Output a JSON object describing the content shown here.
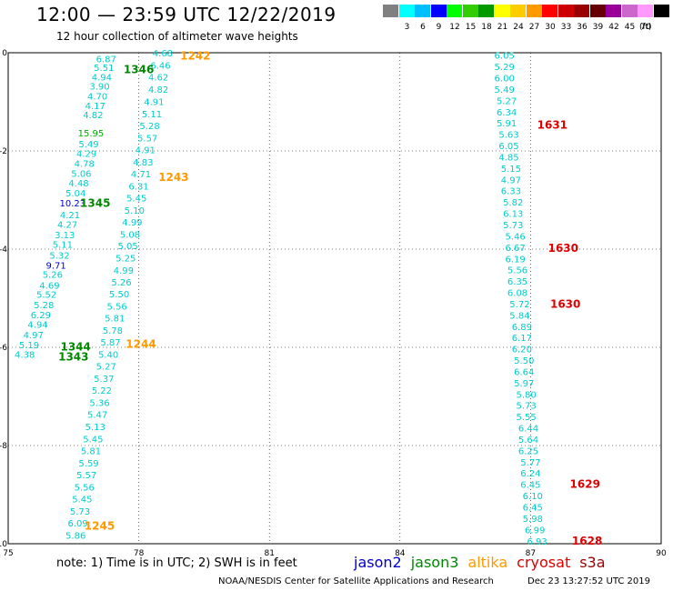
{
  "header": {
    "title": "12:00 — 23:59 UTC 12/22/2019",
    "subtitle": "12 hour collection of altimeter wave heights"
  },
  "color_scale": {
    "unit": "(ft)",
    "bins": [
      {
        "label": "",
        "color": "#808080"
      },
      {
        "label": "3",
        "color": "#00ffff"
      },
      {
        "label": "6",
        "color": "#00bfff"
      },
      {
        "label": "9",
        "color": "#0000ff"
      },
      {
        "label": "12",
        "color": "#00ff00"
      },
      {
        "label": "15",
        "color": "#33cc00"
      },
      {
        "label": "18",
        "color": "#009900"
      },
      {
        "label": "21",
        "color": "#ffff00"
      },
      {
        "label": "24",
        "color": "#ffcc00"
      },
      {
        "label": "27",
        "color": "#ff9900"
      },
      {
        "label": "30",
        "color": "#ff0000"
      },
      {
        "label": "33",
        "color": "#cc0000"
      },
      {
        "label": "36",
        "color": "#990000"
      },
      {
        "label": "39",
        "color": "#660000"
      },
      {
        "label": "42",
        "color": "#990099"
      },
      {
        "label": "45",
        "color": "#cc66cc"
      },
      {
        "label": "70",
        "color": "#ff99ff"
      },
      {
        "label": "",
        "color": "#000000"
      }
    ]
  },
  "chart_data": {
    "type": "scatter",
    "lon_ticks": [
      "75",
      "78",
      "81",
      "84",
      "87",
      "90"
    ],
    "lat_ticks": [
      "0",
      "-2",
      "-4",
      "-6",
      "-8",
      "-10"
    ],
    "lon_range": [
      75,
      90
    ],
    "lat_range": [
      -10,
      0
    ],
    "colors": {
      "swh": "#00cccc",
      "swh_blue": "#0000cc",
      "swh_green": "#00aa00",
      "jason2": "#0000cc",
      "jason3": "#008800",
      "altika": "#ff9900",
      "cryosat": "#dd0000",
      "s3a": "#990000"
    },
    "tracks": [
      {
        "name": "track-a",
        "points": [
          {
            "lon": 77.25,
            "lat": -0.12,
            "v": "6.87"
          },
          {
            "lon": 77.2,
            "lat": -0.3,
            "v": "5.51"
          },
          {
            "lon": 77.15,
            "lat": -0.49,
            "v": "4.94"
          },
          {
            "lon": 77.1,
            "lat": -0.68,
            "v": "3.90"
          },
          {
            "lon": 77.05,
            "lat": -0.88,
            "v": "4.70"
          },
          {
            "lon": 77.0,
            "lat": -1.07,
            "v": "4.17"
          },
          {
            "lon": 76.95,
            "lat": -1.26,
            "v": "4.82"
          },
          {
            "lon": 76.9,
            "lat": -1.63,
            "v": "15.95",
            "c": "green"
          },
          {
            "lon": 76.85,
            "lat": -1.85,
            "v": "5.49"
          },
          {
            "lon": 76.8,
            "lat": -2.05,
            "v": "4.29"
          },
          {
            "lon": 76.75,
            "lat": -2.25,
            "v": "4.78"
          },
          {
            "lon": 76.68,
            "lat": -2.45,
            "v": "5.06"
          },
          {
            "lon": 76.62,
            "lat": -2.65,
            "v": "4.48"
          },
          {
            "lon": 76.55,
            "lat": -2.85,
            "v": "5.04"
          },
          {
            "lon": 76.48,
            "lat": -3.06,
            "v": "10.23",
            "c": "blue"
          },
          {
            "lon": 76.42,
            "lat": -3.3,
            "v": "4.21"
          },
          {
            "lon": 76.36,
            "lat": -3.49,
            "v": "4.27"
          },
          {
            "lon": 76.3,
            "lat": -3.7,
            "v": "3.13"
          },
          {
            "lon": 76.25,
            "lat": -3.9,
            "v": "5.11"
          },
          {
            "lon": 76.18,
            "lat": -4.12,
            "v": "5.32"
          },
          {
            "lon": 76.1,
            "lat": -4.32,
            "v": "9.71",
            "c": "blue"
          },
          {
            "lon": 76.02,
            "lat": -4.51,
            "v": "5.26"
          },
          {
            "lon": 75.95,
            "lat": -4.73,
            "v": "4.69"
          },
          {
            "lon": 75.88,
            "lat": -4.92,
            "v": "5.52"
          },
          {
            "lon": 75.82,
            "lat": -5.13,
            "v": "5.28"
          },
          {
            "lon": 75.75,
            "lat": -5.33,
            "v": "6.29"
          },
          {
            "lon": 75.68,
            "lat": -5.53,
            "v": "4.94"
          },
          {
            "lon": 75.58,
            "lat": -5.74,
            "v": "4.97"
          },
          {
            "lon": 75.48,
            "lat": -5.94,
            "v": "5.19"
          },
          {
            "lon": 75.38,
            "lat": -6.14,
            "v": "4.38"
          }
        ],
        "labels": [
          {
            "lon": 77.0,
            "lat": -3.05,
            "t": "1345",
            "c": "jason3"
          },
          {
            "lon": 76.55,
            "lat": -5.97,
            "t": "1344",
            "c": "jason3"
          },
          {
            "lon": 76.5,
            "lat": -6.18,
            "t": "1343",
            "c": "jason3"
          }
        ]
      },
      {
        "name": "track-b",
        "points": [
          {
            "lon": 78.55,
            "lat": 0.0,
            "v": "4.68"
          },
          {
            "lon": 78.5,
            "lat": -0.25,
            "v": "6.46"
          },
          {
            "lon": 78.45,
            "lat": -0.49,
            "v": "4.62"
          },
          {
            "lon": 78.45,
            "lat": -0.74,
            "v": "4.82"
          },
          {
            "lon": 78.35,
            "lat": -0.99,
            "v": "4.91"
          },
          {
            "lon": 78.3,
            "lat": -1.24,
            "v": "5.11"
          },
          {
            "lon": 78.25,
            "lat": -1.48,
            "v": "5.28"
          },
          {
            "lon": 78.2,
            "lat": -1.73,
            "v": "5.57"
          },
          {
            "lon": 78.15,
            "lat": -1.97,
            "v": "4.91"
          },
          {
            "lon": 78.1,
            "lat": -2.22,
            "v": "4.83"
          },
          {
            "lon": 78.05,
            "lat": -2.46,
            "v": "4.71"
          },
          {
            "lon": 78.0,
            "lat": -2.71,
            "v": "6.31"
          },
          {
            "lon": 77.95,
            "lat": -2.95,
            "v": "5.45"
          },
          {
            "lon": 77.9,
            "lat": -3.2,
            "v": "5.10"
          },
          {
            "lon": 77.85,
            "lat": -3.44,
            "v": "4.99"
          },
          {
            "lon": 77.8,
            "lat": -3.69,
            "v": "5.08"
          },
          {
            "lon": 77.75,
            "lat": -3.93,
            "v": "5.05"
          },
          {
            "lon": 77.7,
            "lat": -4.18,
            "v": "5.25"
          },
          {
            "lon": 77.65,
            "lat": -4.43,
            "v": "4.99"
          },
          {
            "lon": 77.6,
            "lat": -4.67,
            "v": "5.26"
          },
          {
            "lon": 77.55,
            "lat": -4.91,
            "v": "5.50"
          },
          {
            "lon": 77.5,
            "lat": -5.16,
            "v": "5.56"
          },
          {
            "lon": 77.45,
            "lat": -5.4,
            "v": "5.81"
          },
          {
            "lon": 77.4,
            "lat": -5.65,
            "v": "5.78"
          },
          {
            "lon": 77.35,
            "lat": -5.89,
            "v": "5.87"
          },
          {
            "lon": 77.3,
            "lat": -6.14,
            "v": "5.40"
          },
          {
            "lon": 77.25,
            "lat": -6.38,
            "v": "5.27"
          },
          {
            "lon": 77.2,
            "lat": -6.63,
            "v": "5.37"
          },
          {
            "lon": 77.15,
            "lat": -6.87,
            "v": "5.22"
          },
          {
            "lon": 77.1,
            "lat": -7.12,
            "v": "5.36"
          },
          {
            "lon": 77.05,
            "lat": -7.36,
            "v": "5.47"
          },
          {
            "lon": 77.0,
            "lat": -7.61,
            "v": "5.13"
          },
          {
            "lon": 76.95,
            "lat": -7.86,
            "v": "5.45"
          },
          {
            "lon": 76.9,
            "lat": -8.1,
            "v": "5.81"
          },
          {
            "lon": 76.85,
            "lat": -8.35,
            "v": "5.59"
          },
          {
            "lon": 76.8,
            "lat": -8.59,
            "v": "5.57"
          },
          {
            "lon": 76.75,
            "lat": -8.84,
            "v": "5.56"
          },
          {
            "lon": 76.7,
            "lat": -9.08,
            "v": "5.45"
          },
          {
            "lon": 76.65,
            "lat": -9.33,
            "v": "5.73"
          },
          {
            "lon": 76.6,
            "lat": -9.57,
            "v": "6.09"
          },
          {
            "lon": 76.55,
            "lat": -9.82,
            "v": "5.86"
          }
        ],
        "labels": [
          {
            "lon": 78.0,
            "lat": -0.32,
            "t": "1346",
            "c": "jason3"
          },
          {
            "lon": 79.3,
            "lat": -0.05,
            "t": "1242",
            "c": "altika"
          },
          {
            "lon": 78.8,
            "lat": -2.52,
            "t": "1243",
            "c": "altika"
          },
          {
            "lon": 78.05,
            "lat": -5.92,
            "t": "1244",
            "c": "altika"
          },
          {
            "lon": 77.1,
            "lat": -9.62,
            "t": "1245",
            "c": "altika"
          }
        ]
      },
      {
        "name": "track-c",
        "points": [
          {
            "lon": 86.4,
            "lat": -0.05,
            "v": "6.05"
          },
          {
            "lon": 86.4,
            "lat": -0.28,
            "v": "5.29"
          },
          {
            "lon": 86.4,
            "lat": -0.51,
            "v": "6.00"
          },
          {
            "lon": 86.4,
            "lat": -0.74,
            "v": "5.49"
          },
          {
            "lon": 86.45,
            "lat": -0.97,
            "v": "5.27"
          },
          {
            "lon": 86.45,
            "lat": -1.2,
            "v": "6.34"
          },
          {
            "lon": 86.45,
            "lat": -1.43,
            "v": "5.91"
          },
          {
            "lon": 86.5,
            "lat": -1.66,
            "v": "5.63"
          },
          {
            "lon": 86.5,
            "lat": -1.89,
            "v": "6.05"
          },
          {
            "lon": 86.5,
            "lat": -2.12,
            "v": "4.85"
          },
          {
            "lon": 86.55,
            "lat": -2.35,
            "v": "5.15"
          },
          {
            "lon": 86.55,
            "lat": -2.58,
            "v": "4.97"
          },
          {
            "lon": 86.55,
            "lat": -2.81,
            "v": "6.33"
          },
          {
            "lon": 86.6,
            "lat": -3.04,
            "v": "5.82"
          },
          {
            "lon": 86.6,
            "lat": -3.27,
            "v": "6.13"
          },
          {
            "lon": 86.6,
            "lat": -3.5,
            "v": "5.73"
          },
          {
            "lon": 86.65,
            "lat": -3.73,
            "v": "5.46"
          },
          {
            "lon": 86.65,
            "lat": -3.96,
            "v": "6.67"
          },
          {
            "lon": 86.65,
            "lat": -4.19,
            "v": "6.19"
          },
          {
            "lon": 86.7,
            "lat": -4.42,
            "v": "5.56"
          },
          {
            "lon": 86.7,
            "lat": -4.65,
            "v": "6.35"
          },
          {
            "lon": 86.7,
            "lat": -4.88,
            "v": "6.08"
          },
          {
            "lon": 86.75,
            "lat": -5.11,
            "v": "5.72"
          },
          {
            "lon": 86.75,
            "lat": -5.34,
            "v": "5.84"
          },
          {
            "lon": 86.8,
            "lat": -5.57,
            "v": "6.89"
          },
          {
            "lon": 86.8,
            "lat": -5.8,
            "v": "6.17"
          },
          {
            "lon": 86.8,
            "lat": -6.03,
            "v": "6.20"
          },
          {
            "lon": 86.85,
            "lat": -6.26,
            "v": "5.50"
          },
          {
            "lon": 86.85,
            "lat": -6.49,
            "v": "6.64"
          },
          {
            "lon": 86.85,
            "lat": -6.72,
            "v": "5.97"
          },
          {
            "lon": 86.9,
            "lat": -6.95,
            "v": "5.80"
          },
          {
            "lon": 86.9,
            "lat": -7.18,
            "v": "5.73"
          },
          {
            "lon": 86.9,
            "lat": -7.41,
            "v": "5.55"
          },
          {
            "lon": 86.95,
            "lat": -7.64,
            "v": "6.44"
          },
          {
            "lon": 86.95,
            "lat": -7.87,
            "v": "5.64"
          },
          {
            "lon": 86.95,
            "lat": -8.1,
            "v": "6.25"
          },
          {
            "lon": 87.0,
            "lat": -8.33,
            "v": "5.77"
          },
          {
            "lon": 87.0,
            "lat": -8.56,
            "v": "6.24"
          },
          {
            "lon": 87.0,
            "lat": -8.79,
            "v": "6.45"
          },
          {
            "lon": 87.05,
            "lat": -9.02,
            "v": "6.10"
          },
          {
            "lon": 87.05,
            "lat": -9.25,
            "v": "6.45"
          },
          {
            "lon": 87.05,
            "lat": -9.48,
            "v": "5.98"
          },
          {
            "lon": 87.1,
            "lat": -9.71,
            "v": "6.99"
          },
          {
            "lon": 87.15,
            "lat": -9.94,
            "v": "6.93"
          }
        ],
        "labels": [
          {
            "lon": 87.5,
            "lat": -1.45,
            "t": "1631",
            "c": "cryosat"
          },
          {
            "lon": 87.75,
            "lat": -3.96,
            "t": "1630",
            "c": "cryosat"
          },
          {
            "lon": 87.8,
            "lat": -5.1,
            "t": "1630",
            "c": "cryosat"
          },
          {
            "lon": 88.25,
            "lat": -8.77,
            "t": "1629",
            "c": "cryosat"
          },
          {
            "lon": 88.3,
            "lat": -9.93,
            "t": "1628",
            "c": "cryosat"
          }
        ]
      }
    ]
  },
  "note": "note:  1) Time is in UTC;  2) SWH is in feet",
  "legend": [
    {
      "label": "jason2",
      "color": "#0000cc"
    },
    {
      "label": "jason3",
      "color": "#008800"
    },
    {
      "label": "altika",
      "color": "#ff9900"
    },
    {
      "label": "cryosat",
      "color": "#dd0000"
    },
    {
      "label": "s3a",
      "color": "#990000"
    }
  ],
  "footer": {
    "credit": "NOAA/NESDIS Center for Satellite Applications and Research",
    "timestamp": "Dec 23 13:27:52 UTC 2019"
  }
}
